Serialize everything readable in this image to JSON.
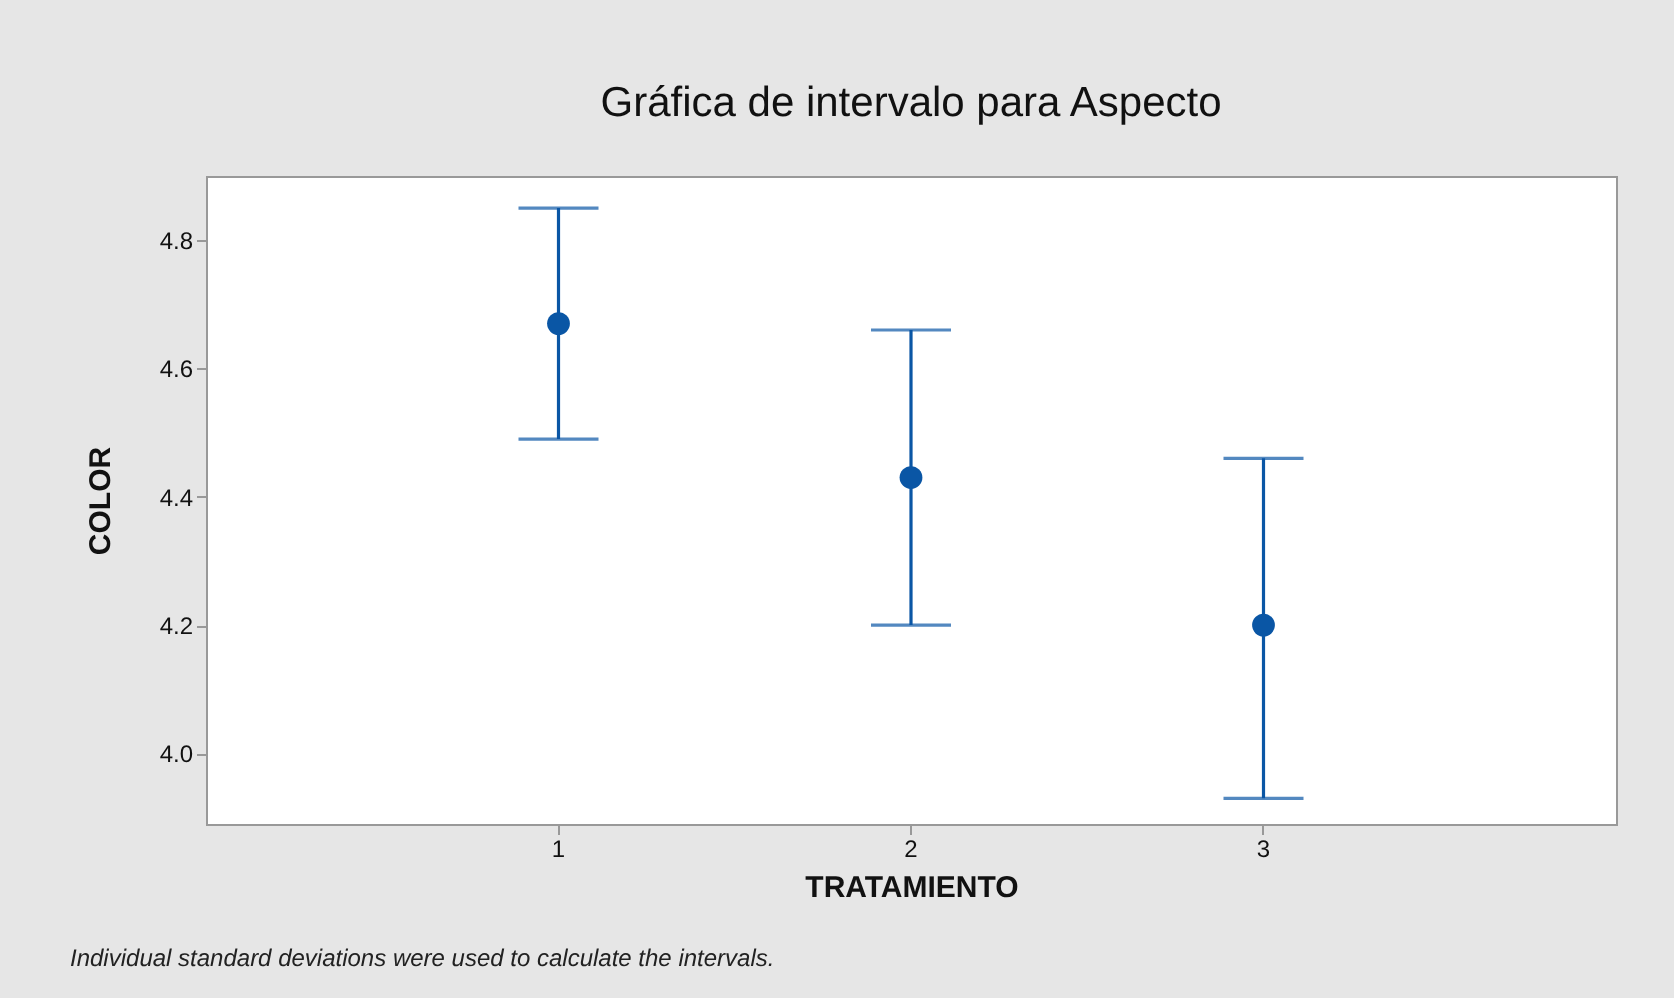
{
  "chart_data": {
    "type": "scatter",
    "title": "Gráfica de intervalo para Aspecto",
    "xlabel": "TRATAMIENTO",
    "ylabel": "COLOR",
    "categories": [
      "1",
      "2",
      "3"
    ],
    "values": [
      4.67,
      4.43,
      4.2
    ],
    "errors": [
      [
        4.49,
        4.85
      ],
      [
        4.2,
        4.66
      ],
      [
        3.93,
        4.46
      ]
    ],
    "color": "#0a56a5",
    "marker": "circle",
    "ylim": [
      3.89,
      4.9
    ],
    "yticks": [
      {
        "value": 4.0,
        "label": "4.0"
      },
      4.2,
      4.4,
      4.6,
      4.8
    ],
    "annotations": [
      "Individual standard deviations were used to calculate the intervals."
    ]
  }
}
